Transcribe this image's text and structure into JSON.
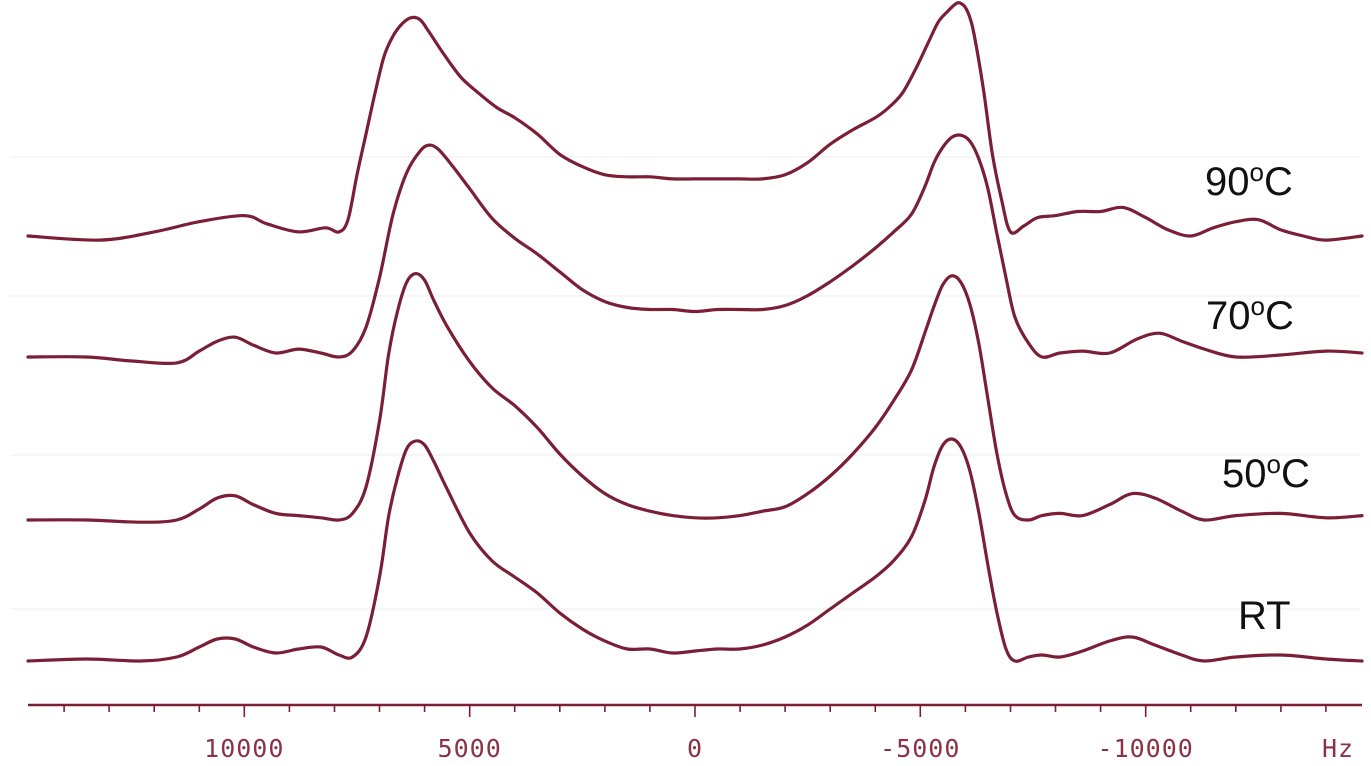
{
  "chart_data": {
    "type": "line",
    "title": "",
    "xlabel": "",
    "ylabel": "",
    "x_unit": "Hz",
    "x_reversed": true,
    "xlim": [
      14800,
      -14800
    ],
    "x_ticks": [
      10000,
      5000,
      0,
      -5000,
      -10000
    ],
    "x_tick_labels": [
      "10000",
      "5000",
      "0",
      "-5000",
      "-10000"
    ],
    "y_axis_shown": false,
    "grid": false,
    "color": "#7a1f35",
    "series": [
      {
        "name": "90°C",
        "label_main": "90",
        "label_sup": "o",
        "label_unit": "C",
        "x": [
          14800,
          13200,
          12000,
          11000,
          10000,
          9500,
          8800,
          8200,
          7900,
          7700,
          7500,
          7300,
          7100,
          6900,
          6700,
          6500,
          6300,
          6100,
          5900,
          5600,
          5200,
          4800,
          4400,
          4000,
          3500,
          3000,
          2500,
          2000,
          1500,
          1000,
          500,
          0,
          -500,
          -1000,
          -1500,
          -2000,
          -2500,
          -3000,
          -3500,
          -4000,
          -4300,
          -4600,
          -4900,
          -5200,
          -5400,
          -5600,
          -5800,
          -5900,
          -6000,
          -6100,
          -6200,
          -6400,
          -6600,
          -6800,
          -7000,
          -7300,
          -7600,
          -8000,
          -8500,
          -9000,
          -9500,
          -10000,
          -10500,
          -11000,
          -11500,
          -12000,
          -12500,
          -13000,
          -13500,
          -14000,
          -14800
        ],
        "y": [
          0,
          -0.02,
          0.02,
          0.07,
          0.1,
          0.06,
          0.02,
          0.04,
          0.02,
          0.08,
          0.3,
          0.5,
          0.7,
          0.88,
          0.98,
          1.04,
          1.07,
          1.06,
          1.0,
          0.9,
          0.78,
          0.7,
          0.63,
          0.58,
          0.5,
          0.4,
          0.34,
          0.3,
          0.29,
          0.29,
          0.28,
          0.28,
          0.28,
          0.28,
          0.28,
          0.3,
          0.36,
          0.45,
          0.52,
          0.58,
          0.63,
          0.7,
          0.82,
          0.96,
          1.05,
          1.1,
          1.14,
          1.14,
          1.12,
          1.07,
          0.98,
          0.72,
          0.4,
          0.18,
          0.02,
          0.05,
          0.09,
          0.1,
          0.12,
          0.12,
          0.14,
          0.09,
          0.03,
          0.0,
          0.04,
          0.07,
          0.08,
          0.03,
          0.0,
          -0.02,
          0.0
        ]
      },
      {
        "name": "70°C",
        "label_main": "70",
        "label_sup": "o",
        "label_unit": "C",
        "x": [
          14800,
          13500,
          12500,
          11500,
          11000,
          10600,
          10200,
          9800,
          9300,
          8800,
          8300,
          7900,
          7600,
          7300,
          7000,
          6700,
          6400,
          6100,
          5900,
          5700,
          5400,
          5000,
          4500,
          4000,
          3500,
          3000,
          2500,
          2000,
          1500,
          1000,
          500,
          0,
          -500,
          -1000,
          -1500,
          -2000,
          -2500,
          -3000,
          -3500,
          -4000,
          -4400,
          -4800,
          -5100,
          -5300,
          -5500,
          -5700,
          -5900,
          -6100,
          -6300,
          -6500,
          -6700,
          -6900,
          -7100,
          -7400,
          -7700,
          -8100,
          -8600,
          -9200,
          -9800,
          -10300,
          -10800,
          -11300,
          -12000,
          -13000,
          -14000,
          -14800
        ],
        "y": [
          0,
          0.0,
          -0.02,
          -0.03,
          0.03,
          0.08,
          0.1,
          0.06,
          0.02,
          0.04,
          0.02,
          0.0,
          0.03,
          0.15,
          0.4,
          0.72,
          0.93,
          1.04,
          1.07,
          1.05,
          0.97,
          0.85,
          0.7,
          0.6,
          0.52,
          0.43,
          0.34,
          0.28,
          0.25,
          0.24,
          0.24,
          0.23,
          0.24,
          0.24,
          0.24,
          0.26,
          0.31,
          0.38,
          0.46,
          0.55,
          0.63,
          0.72,
          0.86,
          0.98,
          1.06,
          1.11,
          1.12,
          1.09,
          1.0,
          0.85,
          0.62,
          0.4,
          0.2,
          0.07,
          0.0,
          0.02,
          0.03,
          0.02,
          0.09,
          0.12,
          0.08,
          0.04,
          0.0,
          0.01,
          0.03,
          0.02
        ]
      },
      {
        "name": "50°C",
        "label_main": "50",
        "label_sup": "o",
        "label_unit": "C",
        "x": [
          14800,
          13500,
          12300,
          11500,
          11000,
          10600,
          10200,
          9800,
          9300,
          8800,
          8300,
          7900,
          7600,
          7300,
          7000,
          6800,
          6600,
          6400,
          6200,
          6000,
          5800,
          5500,
          5000,
          4500,
          4000,
          3500,
          3000,
          2500,
          2000,
          1500,
          1000,
          500,
          0,
          -500,
          -1000,
          -1500,
          -2000,
          -2500,
          -3000,
          -3500,
          -4000,
          -4400,
          -4800,
          -5100,
          -5300,
          -5500,
          -5700,
          -5900,
          -6100,
          -6300,
          -6500,
          -6700,
          -6900,
          -7100,
          -7400,
          -7700,
          -8100,
          -8600,
          -9200,
          -9700,
          -10200,
          -10800,
          -11300,
          -12000,
          -13000,
          -14000,
          -14800
        ],
        "y": [
          0,
          0.0,
          -0.01,
          0.0,
          0.05,
          0.1,
          0.11,
          0.07,
          0.03,
          0.02,
          0.01,
          0.0,
          0.03,
          0.15,
          0.45,
          0.75,
          0.95,
          1.08,
          1.12,
          1.09,
          1.0,
          0.88,
          0.72,
          0.6,
          0.52,
          0.42,
          0.3,
          0.2,
          0.12,
          0.07,
          0.04,
          0.02,
          0.01,
          0.01,
          0.02,
          0.04,
          0.06,
          0.12,
          0.2,
          0.3,
          0.42,
          0.54,
          0.68,
          0.85,
          0.97,
          1.07,
          1.11,
          1.08,
          0.98,
          0.8,
          0.55,
          0.3,
          0.12,
          0.02,
          0.0,
          0.02,
          0.03,
          0.02,
          0.07,
          0.12,
          0.1,
          0.04,
          0.0,
          0.02,
          0.03,
          0.01,
          0.02
        ]
      },
      {
        "name": "RT",
        "label_main": "RT",
        "label_sup": "",
        "label_unit": "",
        "x": [
          14800,
          13500,
          12300,
          11500,
          11000,
          10600,
          10200,
          9800,
          9300,
          8800,
          8300,
          7900,
          7600,
          7300,
          7000,
          6800,
          6600,
          6400,
          6200,
          6000,
          5800,
          5500,
          5000,
          4500,
          4000,
          3500,
          3000,
          2500,
          2000,
          1500,
          1000,
          500,
          0,
          -500,
          -1000,
          -1500,
          -2000,
          -2500,
          -3000,
          -3500,
          -4000,
          -4400,
          -4800,
          -5100,
          -5300,
          -5500,
          -5700,
          -5900,
          -6100,
          -6300,
          -6500,
          -6700,
          -6900,
          -7100,
          -7400,
          -7700,
          -8100,
          -8600,
          -9200,
          -9700,
          -10200,
          -10800,
          -11300,
          -12000,
          -13000,
          -14000,
          -14800
        ],
        "y": [
          0,
          0.01,
          0.0,
          0.02,
          0.07,
          0.11,
          0.11,
          0.07,
          0.04,
          0.06,
          0.07,
          0.03,
          0.02,
          0.12,
          0.42,
          0.72,
          0.92,
          1.06,
          1.1,
          1.08,
          1.0,
          0.86,
          0.64,
          0.5,
          0.42,
          0.34,
          0.24,
          0.16,
          0.1,
          0.06,
          0.06,
          0.04,
          0.05,
          0.06,
          0.06,
          0.08,
          0.12,
          0.18,
          0.26,
          0.34,
          0.42,
          0.5,
          0.62,
          0.8,
          0.97,
          1.08,
          1.11,
          1.07,
          0.95,
          0.74,
          0.48,
          0.24,
          0.06,
          0.0,
          0.02,
          0.03,
          0.02,
          0.05,
          0.1,
          0.12,
          0.08,
          0.03,
          0.0,
          0.02,
          0.03,
          0.01,
          0.0
        ]
      }
    ]
  }
}
